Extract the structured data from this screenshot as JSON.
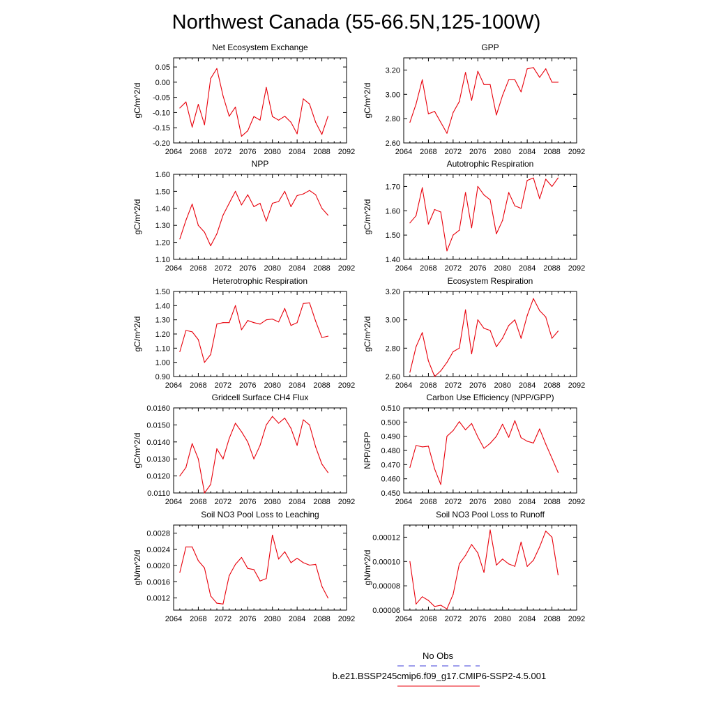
{
  "figure": {
    "title": "Northwest Canada (55-66.5N,125-100W)",
    "legend": [
      {
        "label": "No Obs",
        "color": "#3b3bd9",
        "dash": true
      },
      {
        "label": "b.e21.BSSP245cmip6.f09_g17.CMIP6-SSP2-4.5.001",
        "color": "#e8000b",
        "dash": false
      }
    ]
  },
  "chart_data": [
    {
      "type": "line",
      "title": "Net Ecosystem Exchange",
      "ylabel": "gC/m^2/d",
      "xlim": [
        2064,
        2092
      ],
      "ylim": [
        -0.2,
        0.08
      ],
      "xticks": [
        "2064",
        "2068",
        "2072",
        "2076",
        "2080",
        "2084",
        "2088",
        "2092"
      ],
      "yticks": [
        {
          "v": -0.2,
          "label": "-0.20"
        },
        {
          "v": -0.15,
          "label": "-0.15"
        },
        {
          "v": -0.1,
          "label": "-0.10"
        },
        {
          "v": -0.05,
          "label": "-0.05"
        },
        {
          "v": 0.0,
          "label": "0.00"
        },
        {
          "v": 0.05,
          "label": "0.05"
        }
      ],
      "color": "#e8000b",
      "x": [
        2065,
        2066,
        2067,
        2068,
        2069,
        2070,
        2071,
        2072,
        2073,
        2074,
        2075,
        2076,
        2077,
        2078,
        2079,
        2080,
        2081,
        2082,
        2083,
        2084,
        2085,
        2086,
        2087,
        2088,
        2089
      ],
      "y": [
        -0.085,
        -0.065,
        -0.148,
        -0.073,
        -0.14,
        0.012,
        0.045,
        -0.045,
        -0.112,
        -0.082,
        -0.178,
        -0.16,
        -0.113,
        -0.125,
        -0.017,
        -0.113,
        -0.125,
        -0.112,
        -0.132,
        -0.17,
        -0.055,
        -0.072,
        -0.132,
        -0.172,
        -0.112
      ]
    },
    {
      "type": "line",
      "title": "GPP",
      "ylabel": "gC/m^2/d",
      "xlim": [
        2064,
        2092
      ],
      "ylim": [
        2.6,
        3.3
      ],
      "xticks": [
        "2064",
        "2068",
        "2072",
        "2076",
        "2080",
        "2084",
        "2088",
        "2092"
      ],
      "yticks": [
        {
          "v": 2.6,
          "label": "2.60"
        },
        {
          "v": 2.8,
          "label": "2.80"
        },
        {
          "v": 3.0,
          "label": "3.00"
        },
        {
          "v": 3.2,
          "label": "3.20"
        }
      ],
      "color": "#e8000b",
      "x": [
        2065,
        2066,
        2067,
        2068,
        2069,
        2070,
        2071,
        2072,
        2073,
        2074,
        2075,
        2076,
        2077,
        2078,
        2079,
        2080,
        2081,
        2082,
        2083,
        2084,
        2085,
        2086,
        2087,
        2088,
        2089
      ],
      "y": [
        2.77,
        2.92,
        3.12,
        2.84,
        2.86,
        2.77,
        2.68,
        2.85,
        2.94,
        3.18,
        2.95,
        3.19,
        3.08,
        3.08,
        2.83,
        2.99,
        3.12,
        3.12,
        3.02,
        3.21,
        3.22,
        3.14,
        3.21,
        3.1,
        3.1
      ]
    },
    {
      "type": "line",
      "title": "NPP",
      "ylabel": "gC/m^2/d",
      "xlim": [
        2064,
        2092
      ],
      "ylim": [
        1.1,
        1.6
      ],
      "xticks": [
        "2064",
        "2068",
        "2072",
        "2076",
        "2080",
        "2084",
        "2088",
        "2092"
      ],
      "yticks": [
        {
          "v": 1.1,
          "label": "1.10"
        },
        {
          "v": 1.2,
          "label": "1.20"
        },
        {
          "v": 1.3,
          "label": "1.30"
        },
        {
          "v": 1.4,
          "label": "1.40"
        },
        {
          "v": 1.5,
          "label": "1.50"
        },
        {
          "v": 1.6,
          "label": "1.60"
        }
      ],
      "color": "#e8000b",
      "x": [
        2065,
        2066,
        2067,
        2068,
        2069,
        2070,
        2071,
        2072,
        2073,
        2074,
        2075,
        2076,
        2077,
        2078,
        2079,
        2080,
        2081,
        2082,
        2083,
        2084,
        2085,
        2086,
        2087,
        2088,
        2089
      ],
      "y": [
        1.22,
        1.33,
        1.425,
        1.3,
        1.26,
        1.18,
        1.25,
        1.36,
        1.43,
        1.5,
        1.42,
        1.48,
        1.41,
        1.43,
        1.325,
        1.43,
        1.44,
        1.5,
        1.41,
        1.475,
        1.485,
        1.505,
        1.48,
        1.4,
        1.36
      ]
    },
    {
      "type": "line",
      "title": "Autotrophic Respiration",
      "ylabel": "gC/m^2/d",
      "xlim": [
        2064,
        2092
      ],
      "ylim": [
        1.4,
        1.75
      ],
      "xticks": [
        "2064",
        "2068",
        "2072",
        "2076",
        "2080",
        "2084",
        "2088",
        "2092"
      ],
      "yticks": [
        {
          "v": 1.4,
          "label": "1.40"
        },
        {
          "v": 1.5,
          "label": "1.50"
        },
        {
          "v": 1.6,
          "label": "1.60"
        },
        {
          "v": 1.7,
          "label": "1.70"
        }
      ],
      "color": "#e8000b",
      "x": [
        2065,
        2066,
        2067,
        2068,
        2069,
        2070,
        2071,
        2072,
        2073,
        2074,
        2075,
        2076,
        2077,
        2078,
        2079,
        2080,
        2081,
        2082,
        2083,
        2084,
        2085,
        2086,
        2087,
        2088,
        2089
      ],
      "y": [
        1.55,
        1.58,
        1.695,
        1.545,
        1.605,
        1.595,
        1.435,
        1.5,
        1.52,
        1.675,
        1.53,
        1.7,
        1.665,
        1.645,
        1.505,
        1.56,
        1.675,
        1.62,
        1.61,
        1.725,
        1.735,
        1.65,
        1.73,
        1.7,
        1.735
      ]
    },
    {
      "type": "line",
      "title": "Heterotrophic Respiration",
      "ylabel": "gC/m^2/d",
      "xlim": [
        2064,
        2092
      ],
      "ylim": [
        0.9,
        1.5
      ],
      "xticks": [
        "2064",
        "2068",
        "2072",
        "2076",
        "2080",
        "2084",
        "2088",
        "2092"
      ],
      "yticks": [
        {
          "v": 0.9,
          "label": "0.90"
        },
        {
          "v": 1.0,
          "label": "1.00"
        },
        {
          "v": 1.1,
          "label": "1.10"
        },
        {
          "v": 1.2,
          "label": "1.20"
        },
        {
          "v": 1.3,
          "label": "1.30"
        },
        {
          "v": 1.4,
          "label": "1.40"
        },
        {
          "v": 1.5,
          "label": "1.50"
        }
      ],
      "color": "#e8000b",
      "x": [
        2065,
        2066,
        2067,
        2068,
        2069,
        2070,
        2071,
        2072,
        2073,
        2074,
        2075,
        2076,
        2077,
        2078,
        2079,
        2080,
        2081,
        2082,
        2083,
        2084,
        2085,
        2086,
        2087,
        2088,
        2089
      ],
      "y": [
        1.075,
        1.225,
        1.215,
        1.16,
        1.0,
        1.055,
        1.27,
        1.28,
        1.28,
        1.4,
        1.23,
        1.295,
        1.28,
        1.27,
        1.3,
        1.305,
        1.285,
        1.38,
        1.26,
        1.28,
        1.415,
        1.42,
        1.29,
        1.175,
        1.185
      ]
    },
    {
      "type": "line",
      "title": "Ecosystem Respiration",
      "ylabel": "gC/m^2/d",
      "xlim": [
        2064,
        2092
      ],
      "ylim": [
        2.6,
        3.2
      ],
      "xticks": [
        "2064",
        "2068",
        "2072",
        "2076",
        "2080",
        "2084",
        "2088",
        "2092"
      ],
      "yticks": [
        {
          "v": 2.6,
          "label": "2.60"
        },
        {
          "v": 2.8,
          "label": "2.80"
        },
        {
          "v": 3.0,
          "label": "3.00"
        },
        {
          "v": 3.2,
          "label": "3.20"
        }
      ],
      "color": "#e8000b",
      "x": [
        2065,
        2066,
        2067,
        2068,
        2069,
        2070,
        2071,
        2072,
        2073,
        2074,
        2075,
        2076,
        2077,
        2078,
        2079,
        2080,
        2081,
        2082,
        2083,
        2084,
        2085,
        2086,
        2087,
        2088,
        2089
      ],
      "y": [
        2.63,
        2.81,
        2.91,
        2.71,
        2.6,
        2.64,
        2.7,
        2.775,
        2.8,
        3.07,
        2.76,
        3.0,
        2.94,
        2.925,
        2.81,
        2.87,
        2.96,
        3.0,
        2.87,
        3.03,
        3.15,
        3.065,
        3.02,
        2.87,
        2.92
      ]
    },
    {
      "type": "line",
      "title": "Gridcell Surface CH4 Flux",
      "ylabel": "gC/m^2/d",
      "xlim": [
        2064,
        2092
      ],
      "ylim": [
        0.011,
        0.016
      ],
      "xticks": [
        "2064",
        "2068",
        "2072",
        "2076",
        "2080",
        "2084",
        "2088",
        "2092"
      ],
      "yticks": [
        {
          "v": 0.011,
          "label": "0.0110"
        },
        {
          "v": 0.012,
          "label": "0.0120"
        },
        {
          "v": 0.013,
          "label": "0.0130"
        },
        {
          "v": 0.014,
          "label": "0.0140"
        },
        {
          "v": 0.015,
          "label": "0.0150"
        },
        {
          "v": 0.016,
          "label": "0.0160"
        }
      ],
      "color": "#e8000b",
      "x": [
        2065,
        2066,
        2067,
        2068,
        2069,
        2070,
        2071,
        2072,
        2073,
        2074,
        2075,
        2076,
        2077,
        2078,
        2079,
        2080,
        2081,
        2082,
        2083,
        2084,
        2085,
        2086,
        2087,
        2088,
        2089
      ],
      "y": [
        0.012,
        0.0125,
        0.0139,
        0.013,
        0.011,
        0.0115,
        0.0136,
        0.013,
        0.0142,
        0.0151,
        0.0146,
        0.014,
        0.013,
        0.0138,
        0.015,
        0.0155,
        0.0151,
        0.0154,
        0.0148,
        0.0138,
        0.0153,
        0.015,
        0.0137,
        0.0127,
        0.0122
      ]
    },
    {
      "type": "line",
      "title": "Carbon Use Efficiency (NPP/GPP)",
      "ylabel": "NPP/GPP",
      "xlim": [
        2064,
        2092
      ],
      "ylim": [
        0.45,
        0.51
      ],
      "xticks": [
        "2064",
        "2068",
        "2072",
        "2076",
        "2080",
        "2084",
        "2088",
        "2092"
      ],
      "yticks": [
        {
          "v": 0.45,
          "label": "0.450"
        },
        {
          "v": 0.46,
          "label": "0.460"
        },
        {
          "v": 0.47,
          "label": "0.470"
        },
        {
          "v": 0.48,
          "label": "0.480"
        },
        {
          "v": 0.49,
          "label": "0.490"
        },
        {
          "v": 0.5,
          "label": "0.500"
        },
        {
          "v": 0.51,
          "label": "0.510"
        }
      ],
      "color": "#e8000b",
      "x": [
        2065,
        2066,
        2067,
        2068,
        2069,
        2070,
        2071,
        2072,
        2073,
        2074,
        2075,
        2076,
        2077,
        2078,
        2079,
        2080,
        2081,
        2082,
        2083,
        2084,
        2085,
        2086,
        2087,
        2088,
        2089
      ],
      "y": [
        0.468,
        0.4835,
        0.4825,
        0.483,
        0.467,
        0.456,
        0.49,
        0.494,
        0.5003,
        0.4945,
        0.499,
        0.4895,
        0.4815,
        0.485,
        0.49,
        0.4985,
        0.4893,
        0.501,
        0.489,
        0.4865,
        0.4852,
        0.4952,
        0.4845,
        0.4745,
        0.4645
      ]
    },
    {
      "type": "line",
      "title": "Soil NO3 Pool Loss to Leaching",
      "ylabel": "gN/m^2/d",
      "xlim": [
        2064,
        2092
      ],
      "ylim": [
        0.0009,
        0.003
      ],
      "xticks": [
        "2064",
        "2068",
        "2072",
        "2076",
        "2080",
        "2084",
        "2088",
        "2092"
      ],
      "yticks": [
        {
          "v": 0.0012,
          "label": "0.0012"
        },
        {
          "v": 0.0016,
          "label": "0.0016"
        },
        {
          "v": 0.002,
          "label": "0.0020"
        },
        {
          "v": 0.0024,
          "label": "0.0024"
        },
        {
          "v": 0.0028,
          "label": "0.0028"
        }
      ],
      "color": "#e8000b",
      "x": [
        2065,
        2066,
        2067,
        2068,
        2069,
        2070,
        2071,
        2072,
        2073,
        2074,
        2075,
        2076,
        2077,
        2078,
        2079,
        2080,
        2081,
        2082,
        2083,
        2084,
        2085,
        2086,
        2087,
        2088,
        2089
      ],
      "y": [
        0.00183,
        0.00246,
        0.00246,
        0.00212,
        0.00194,
        0.00125,
        0.00107,
        0.00105,
        0.00175,
        0.00203,
        0.0022,
        0.00193,
        0.0019,
        0.00162,
        0.00168,
        0.00275,
        0.00216,
        0.00234,
        0.00207,
        0.00218,
        0.00207,
        0.00201,
        0.00203,
        0.00149,
        0.0012
      ]
    },
    {
      "type": "line",
      "title": "Soil NO3 Pool Loss to Runoff",
      "ylabel": "gN/m^2/d",
      "xlim": [
        2064,
        2092
      ],
      "ylim": [
        6e-05,
        0.00013
      ],
      "xticks": [
        "2064",
        "2068",
        "2072",
        "2076",
        "2080",
        "2084",
        "2088",
        "2092"
      ],
      "yticks": [
        {
          "v": 6e-05,
          "label": "0.00006"
        },
        {
          "v": 8e-05,
          "label": "0.00008"
        },
        {
          "v": 0.0001,
          "label": "0.00010"
        },
        {
          "v": 0.00012,
          "label": "0.00012"
        }
      ],
      "color": "#e8000b",
      "x": [
        2065,
        2066,
        2067,
        2068,
        2069,
        2070,
        2071,
        2072,
        2073,
        2074,
        2075,
        2076,
        2077,
        2078,
        2079,
        2080,
        2081,
        2082,
        2083,
        2084,
        2085,
        2086,
        2087,
        2088,
        2089
      ],
      "y": [
        0.0001,
        6.5e-05,
        7.1e-05,
        6.8e-05,
        6.3e-05,
        6.4e-05,
        6.1e-05,
        7.3e-05,
        9.8e-05,
        0.000105,
        0.000114,
        0.000107,
        9.1e-05,
        0.000126,
        9.7e-05,
        0.000102,
        9.8e-05,
        9.6e-05,
        0.000116,
        9.6e-05,
        0.000101,
        0.000112,
        0.000125,
        0.00012,
        8.9e-05
      ]
    }
  ]
}
